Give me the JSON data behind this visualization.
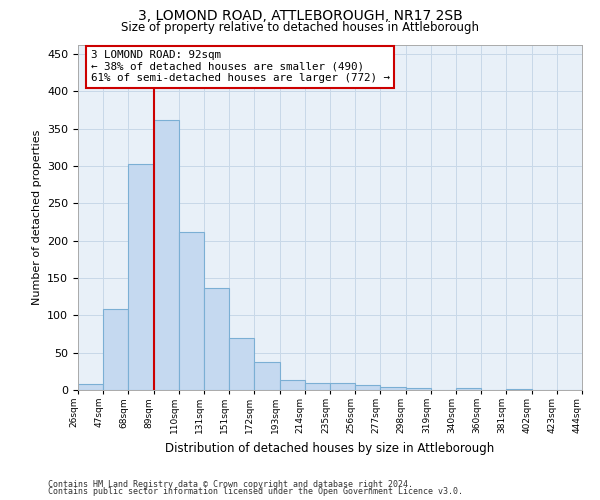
{
  "title": "3, LOMOND ROAD, ATTLEBOROUGH, NR17 2SB",
  "subtitle": "Size of property relative to detached houses in Attleborough",
  "xlabel": "Distribution of detached houses by size in Attleborough",
  "ylabel": "Number of detached properties",
  "footer_line1": "Contains HM Land Registry data © Crown copyright and database right 2024.",
  "footer_line2": "Contains public sector information licensed under the Open Government Licence v3.0.",
  "annotation_line1": "3 LOMOND ROAD: 92sqm",
  "annotation_line2": "← 38% of detached houses are smaller (490)",
  "annotation_line3": "61% of semi-detached houses are larger (772) →",
  "bar_color": "#c5d9f0",
  "bar_edge_color": "#7bafd4",
  "grid_color": "#c8d8e8",
  "vline_color": "#cc0000",
  "bar_values": [
    8,
    108,
    302,
    362,
    212,
    137,
    69,
    38,
    13,
    9,
    10,
    7,
    4,
    3,
    0,
    3,
    0,
    1,
    0,
    0
  ],
  "x_labels": [
    "26sqm",
    "47sqm",
    "68sqm",
    "89sqm",
    "110sqm",
    "131sqm",
    "151sqm",
    "172sqm",
    "193sqm",
    "214sqm",
    "235sqm",
    "256sqm",
    "277sqm",
    "298sqm",
    "319sqm",
    "340sqm",
    "360sqm",
    "381sqm",
    "402sqm",
    "423sqm",
    "444sqm"
  ],
  "ylim": [
    0,
    462
  ],
  "yticks": [
    0,
    50,
    100,
    150,
    200,
    250,
    300,
    350,
    400,
    450
  ],
  "figsize": [
    6.0,
    5.0
  ],
  "dpi": 100,
  "background_color": "#ffffff",
  "plot_bg_color": "#e8f0f8"
}
